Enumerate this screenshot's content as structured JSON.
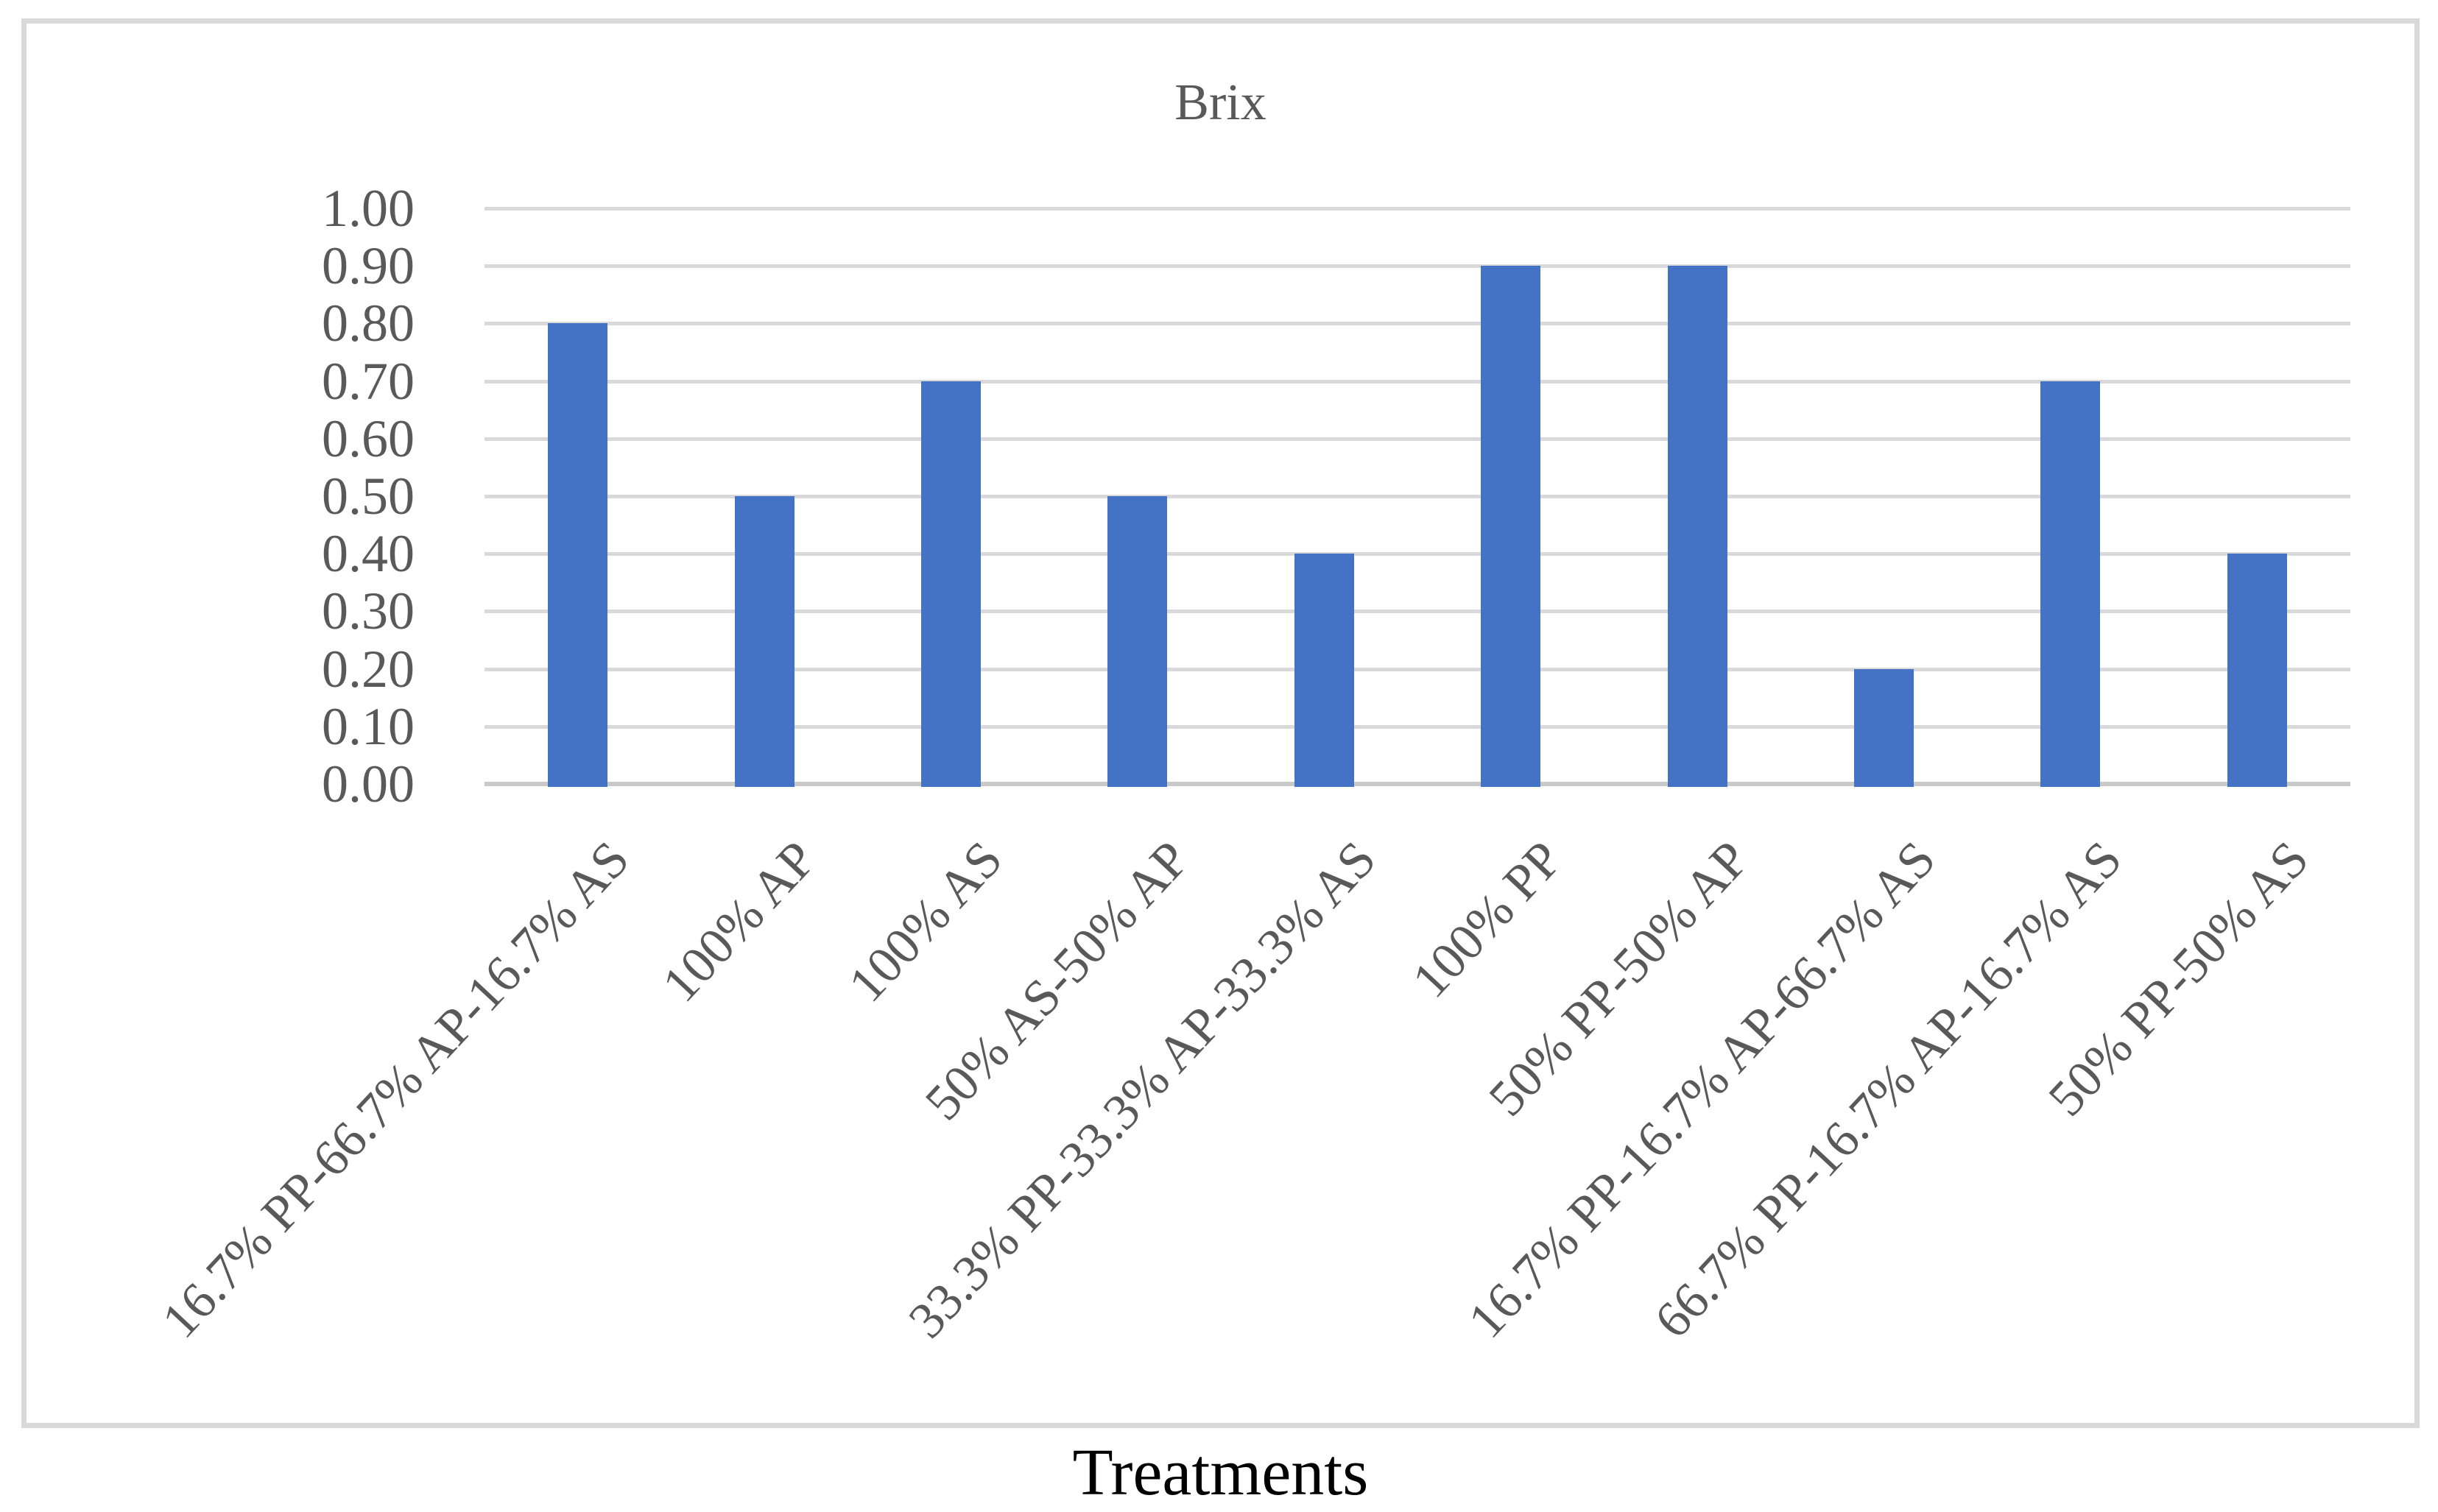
{
  "chart_data": {
    "type": "bar",
    "title": "Brix",
    "xlabel": "Treatments",
    "ylabel": "",
    "categories": [
      "16.7% PP-66.7% AP-16.7% AS",
      "100% AP",
      "100% AS",
      "50% AS-50% AP",
      "33.3% PP-33.3% AP-33.3% AS",
      "100% PP",
      "50% PP-50% AP",
      "16.7% PP-16.7% AP-66.7% AS",
      "66.7% PP-16.7% AP-16.7% AS",
      "50% PP-50% AS"
    ],
    "values": [
      0.8,
      0.5,
      0.7,
      0.5,
      0.4,
      0.9,
      0.9,
      0.2,
      0.7,
      0.4
    ],
    "ylim": [
      0.0,
      1.0
    ],
    "ytick_step": 0.1,
    "ytick_labels": [
      "0.00",
      "0.10",
      "0.20",
      "0.30",
      "0.40",
      "0.50",
      "0.60",
      "0.70",
      "0.80",
      "0.90",
      "1.00"
    ],
    "grid": true,
    "legend": false,
    "x_tick_rotation_deg": -47,
    "bar_color": "#4472C4",
    "gridline_color": "#D9D9D9",
    "baseline_color": "#C9C9C9",
    "border_color": "#D9D9D9",
    "text_color": "#595959",
    "xlabel_color": "#000000",
    "background_color": "#FFFFFF"
  }
}
